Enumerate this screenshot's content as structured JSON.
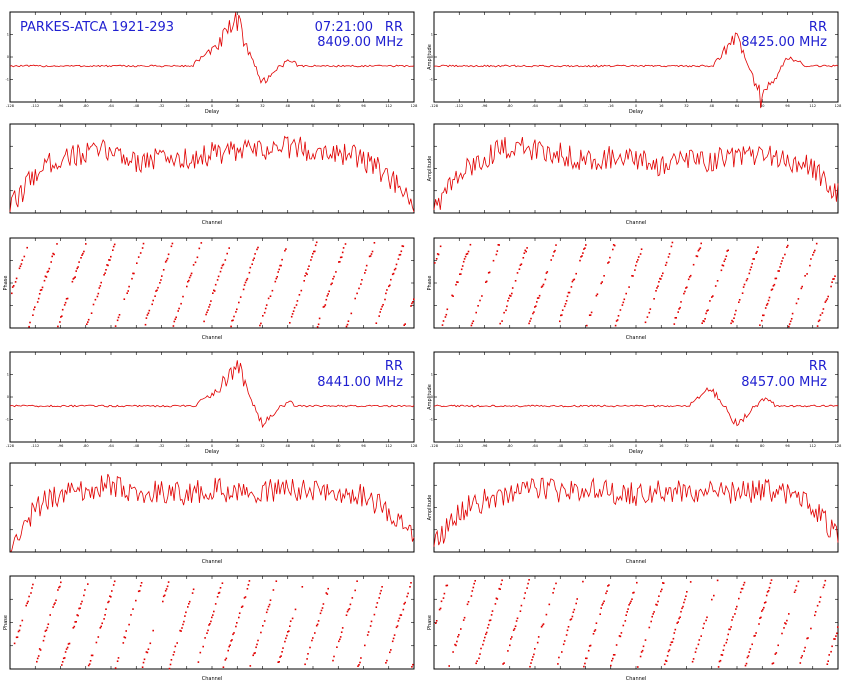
{
  "header": {
    "source": "PARKES-ATCA 1921-293",
    "time": "07:21:00",
    "pol": "RR"
  },
  "colors": {
    "trace": "#e00000",
    "annotation": "#1f1fd0",
    "frame": "#000000"
  },
  "chart_data": [
    {
      "group": 1,
      "polarization": "RR",
      "frequency_label": "8409.00 MHz",
      "plots": [
        {
          "type": "line",
          "xlabel": "Delay",
          "ylabel": "",
          "grid": false,
          "x_range": [
            -128,
            128
          ],
          "y_range": [
            -1,
            1.5
          ],
          "xticks": [
            "-128",
            "-112",
            "-96",
            "-80",
            "-64",
            "-48",
            "-32",
            "-16",
            "0",
            "16",
            "32",
            "48",
            "64",
            "80",
            "96",
            "112",
            "128"
          ],
          "yticks": [
            "1",
            "0",
            "-1"
          ],
          "series": [
            {
              "values": [
                0.01,
                -0.02,
                0.01,
                0.02,
                -0.01,
                0.0,
                0.02,
                -0.03,
                0.45,
                1.35,
                -0.55,
                0.2,
                -0.08,
                0.04,
                -0.02,
                0.01,
                0.0
              ]
            }
          ]
        },
        {
          "type": "line",
          "xlabel": "Channel",
          "ylabel": "",
          "grid": false,
          "x_range": [
            0,
            128
          ],
          "y_range": [
            0,
            1.2
          ],
          "series": [
            {
              "values": [
                0.05,
                0.55,
                0.75,
                0.8,
                0.85,
                0.7,
                0.75,
                0.72,
                0.8,
                0.82,
                0.85,
                0.9,
                0.85,
                0.82,
                0.72,
                0.5,
                0.05
              ]
            }
          ]
        },
        {
          "type": "scatter",
          "xlabel": "Channel",
          "ylabel": "Phase",
          "grid": false,
          "x_range": [
            0,
            128
          ],
          "y_range": [
            -180,
            180
          ],
          "wraps": 14
        }
      ]
    },
    {
      "group": 2,
      "polarization": "RR",
      "frequency_label": "8425.00 MHz",
      "plots": [
        {
          "type": "line",
          "xlabel": "Delay",
          "ylabel": "Amplitude",
          "grid": false,
          "x_range": [
            -128,
            128
          ],
          "y_range": [
            -1,
            1.5
          ],
          "xticks": [
            "-128",
            "-112",
            "-96",
            "-80",
            "-64",
            "-48",
            "-32",
            "-16",
            "0",
            "16",
            "32",
            "48",
            "64",
            "80",
            "96",
            "112",
            "128"
          ],
          "yticks": [
            "1",
            "0",
            "-1"
          ],
          "series": [
            {
              "values": [
                0.01,
                -0.01,
                0.02,
                0.0,
                -0.02,
                0.01,
                0.0,
                -0.01,
                0.02,
                0.01,
                0.0,
                0.03,
                0.9,
                -1.1,
                0.3,
                -0.05,
                0.01
              ]
            }
          ]
        },
        {
          "type": "line",
          "xlabel": "Channel",
          "ylabel": "Amplitude",
          "grid": false,
          "x_range": [
            0,
            128
          ],
          "y_range": [
            0,
            1.2
          ],
          "series": [
            {
              "values": [
                0.1,
                0.5,
                0.75,
                0.9,
                0.85,
                0.8,
                0.72,
                0.75,
                0.7,
                0.65,
                0.7,
                0.72,
                0.75,
                0.78,
                0.7,
                0.6,
                0.25
              ]
            }
          ]
        },
        {
          "type": "scatter",
          "xlabel": "Channel",
          "ylabel": "Phase",
          "grid": false,
          "x_range": [
            0,
            128
          ],
          "y_range": [
            -180,
            180
          ],
          "wraps": 14
        }
      ]
    },
    {
      "group": 3,
      "polarization": "RR",
      "frequency_label": "8441.00 MHz",
      "plots": [
        {
          "type": "line",
          "xlabel": "Delay",
          "ylabel": "",
          "grid": false,
          "x_range": [
            -128,
            128
          ],
          "y_range": [
            -1,
            1.5
          ],
          "xticks": [
            "-128",
            "-112",
            "-96",
            "-80",
            "-64",
            "-48",
            "-32",
            "-16",
            "0",
            "16",
            "32",
            "48",
            "64",
            "80",
            "96",
            "112",
            "128"
          ],
          "yticks": [
            "1",
            "0",
            "-1"
          ],
          "series": [
            {
              "values": [
                0.0,
                0.01,
                -0.01,
                0.02,
                0.0,
                -0.02,
                0.01,
                -0.03,
                0.3,
                1.25,
                -0.6,
                0.15,
                -0.05,
                0.02,
                0.0,
                0.01,
                -0.01
              ]
            }
          ]
        },
        {
          "type": "line",
          "xlabel": "Channel",
          "ylabel": "",
          "grid": false,
          "x_range": [
            0,
            128
          ],
          "y_range": [
            0,
            1.2
          ],
          "series": [
            {
              "values": [
                0.05,
                0.6,
                0.8,
                0.85,
                0.9,
                0.8,
                0.82,
                0.78,
                0.85,
                0.8,
                0.82,
                0.85,
                0.8,
                0.82,
                0.75,
                0.55,
                0.2
              ]
            }
          ]
        },
        {
          "type": "scatter",
          "xlabel": "Channel",
          "ylabel": "Phase",
          "grid": false,
          "x_range": [
            0,
            128
          ],
          "y_range": [
            -180,
            180
          ],
          "wraps": 15
        }
      ]
    },
    {
      "group": 4,
      "polarization": "RR",
      "frequency_label": "8457.00 MHz",
      "plots": [
        {
          "type": "line",
          "xlabel": "Delay",
          "ylabel": "Amplitude",
          "grid": false,
          "x_range": [
            -128,
            128
          ],
          "y_range": [
            -1,
            1.5
          ],
          "xticks": [
            "-128",
            "-112",
            "-96",
            "-80",
            "-64",
            "-48",
            "-32",
            "-16",
            "0",
            "16",
            "32",
            "48",
            "64",
            "80",
            "96",
            "112",
            "128"
          ],
          "yticks": [
            "1",
            "0",
            "-1"
          ],
          "series": [
            {
              "values": [
                0.01,
                0.0,
                -0.01,
                0.01,
                0.02,
                -0.01,
                0.0,
                0.01,
                -0.02,
                0.01,
                0.02,
                0.55,
                -0.6,
                0.25,
                -0.05,
                0.01,
                0.0
              ]
            }
          ]
        },
        {
          "type": "line",
          "xlabel": "Channel",
          "ylabel": "Amplitude",
          "grid": false,
          "x_range": [
            0,
            128
          ],
          "y_range": [
            0,
            1.2
          ],
          "series": [
            {
              "values": [
                0.1,
                0.55,
                0.7,
                0.8,
                0.85,
                0.82,
                0.85,
                0.8,
                0.78,
                0.82,
                0.8,
                0.85,
                0.8,
                0.82,
                0.8,
                0.6,
                0.2
              ]
            }
          ]
        },
        {
          "type": "scatter",
          "xlabel": "Channel",
          "ylabel": "Phase",
          "grid": false,
          "x_range": [
            0,
            128
          ],
          "y_range": [
            -180,
            180
          ],
          "wraps": 15
        }
      ]
    }
  ]
}
